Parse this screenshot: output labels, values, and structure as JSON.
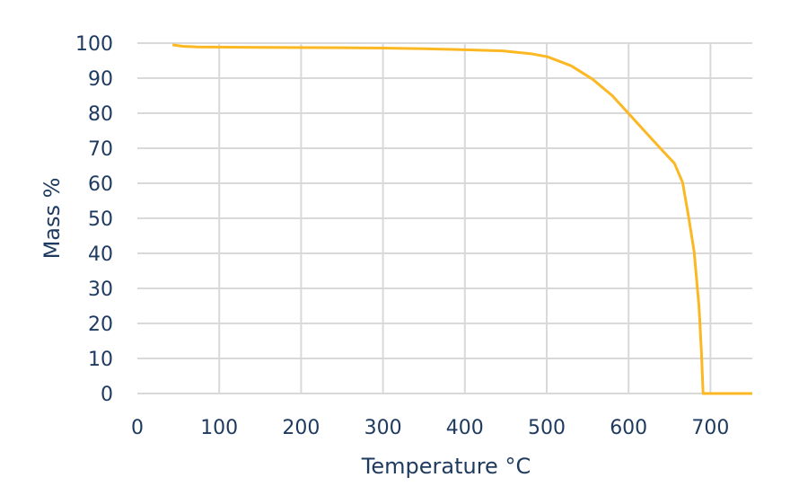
{
  "chart_data": {
    "type": "line",
    "title": "",
    "xlabel": "Temperature °C",
    "ylabel": "Mass %",
    "xlim": [
      0,
      750
    ],
    "ylim": [
      0,
      100
    ],
    "xticks": [
      0,
      100,
      200,
      300,
      400,
      500,
      600,
      700
    ],
    "yticks": [
      0,
      10,
      20,
      30,
      40,
      50,
      60,
      70,
      80,
      90,
      100
    ],
    "grid": true,
    "legend": "none",
    "colors": {
      "line": "#fbb823",
      "grid": "#d9d9d9",
      "text": "#1e3a5f"
    },
    "series": [
      {
        "x": [
          43,
          55,
          73,
          150,
          250,
          300,
          350,
          400,
          446,
          480,
          501,
          530,
          556,
          580,
          602,
          625,
          644,
          656,
          666,
          673,
          680,
          686,
          689,
          691,
          700,
          751
        ],
        "y": [
          99.5,
          99.1,
          98.9,
          98.8,
          98.7,
          98.6,
          98.4,
          98.1,
          97.8,
          97.0,
          96.1,
          93.5,
          89.7,
          85.0,
          79.4,
          73.5,
          68.7,
          65.7,
          60.2,
          50.8,
          40.5,
          25.0,
          11.5,
          0,
          0,
          0
        ]
      }
    ]
  }
}
